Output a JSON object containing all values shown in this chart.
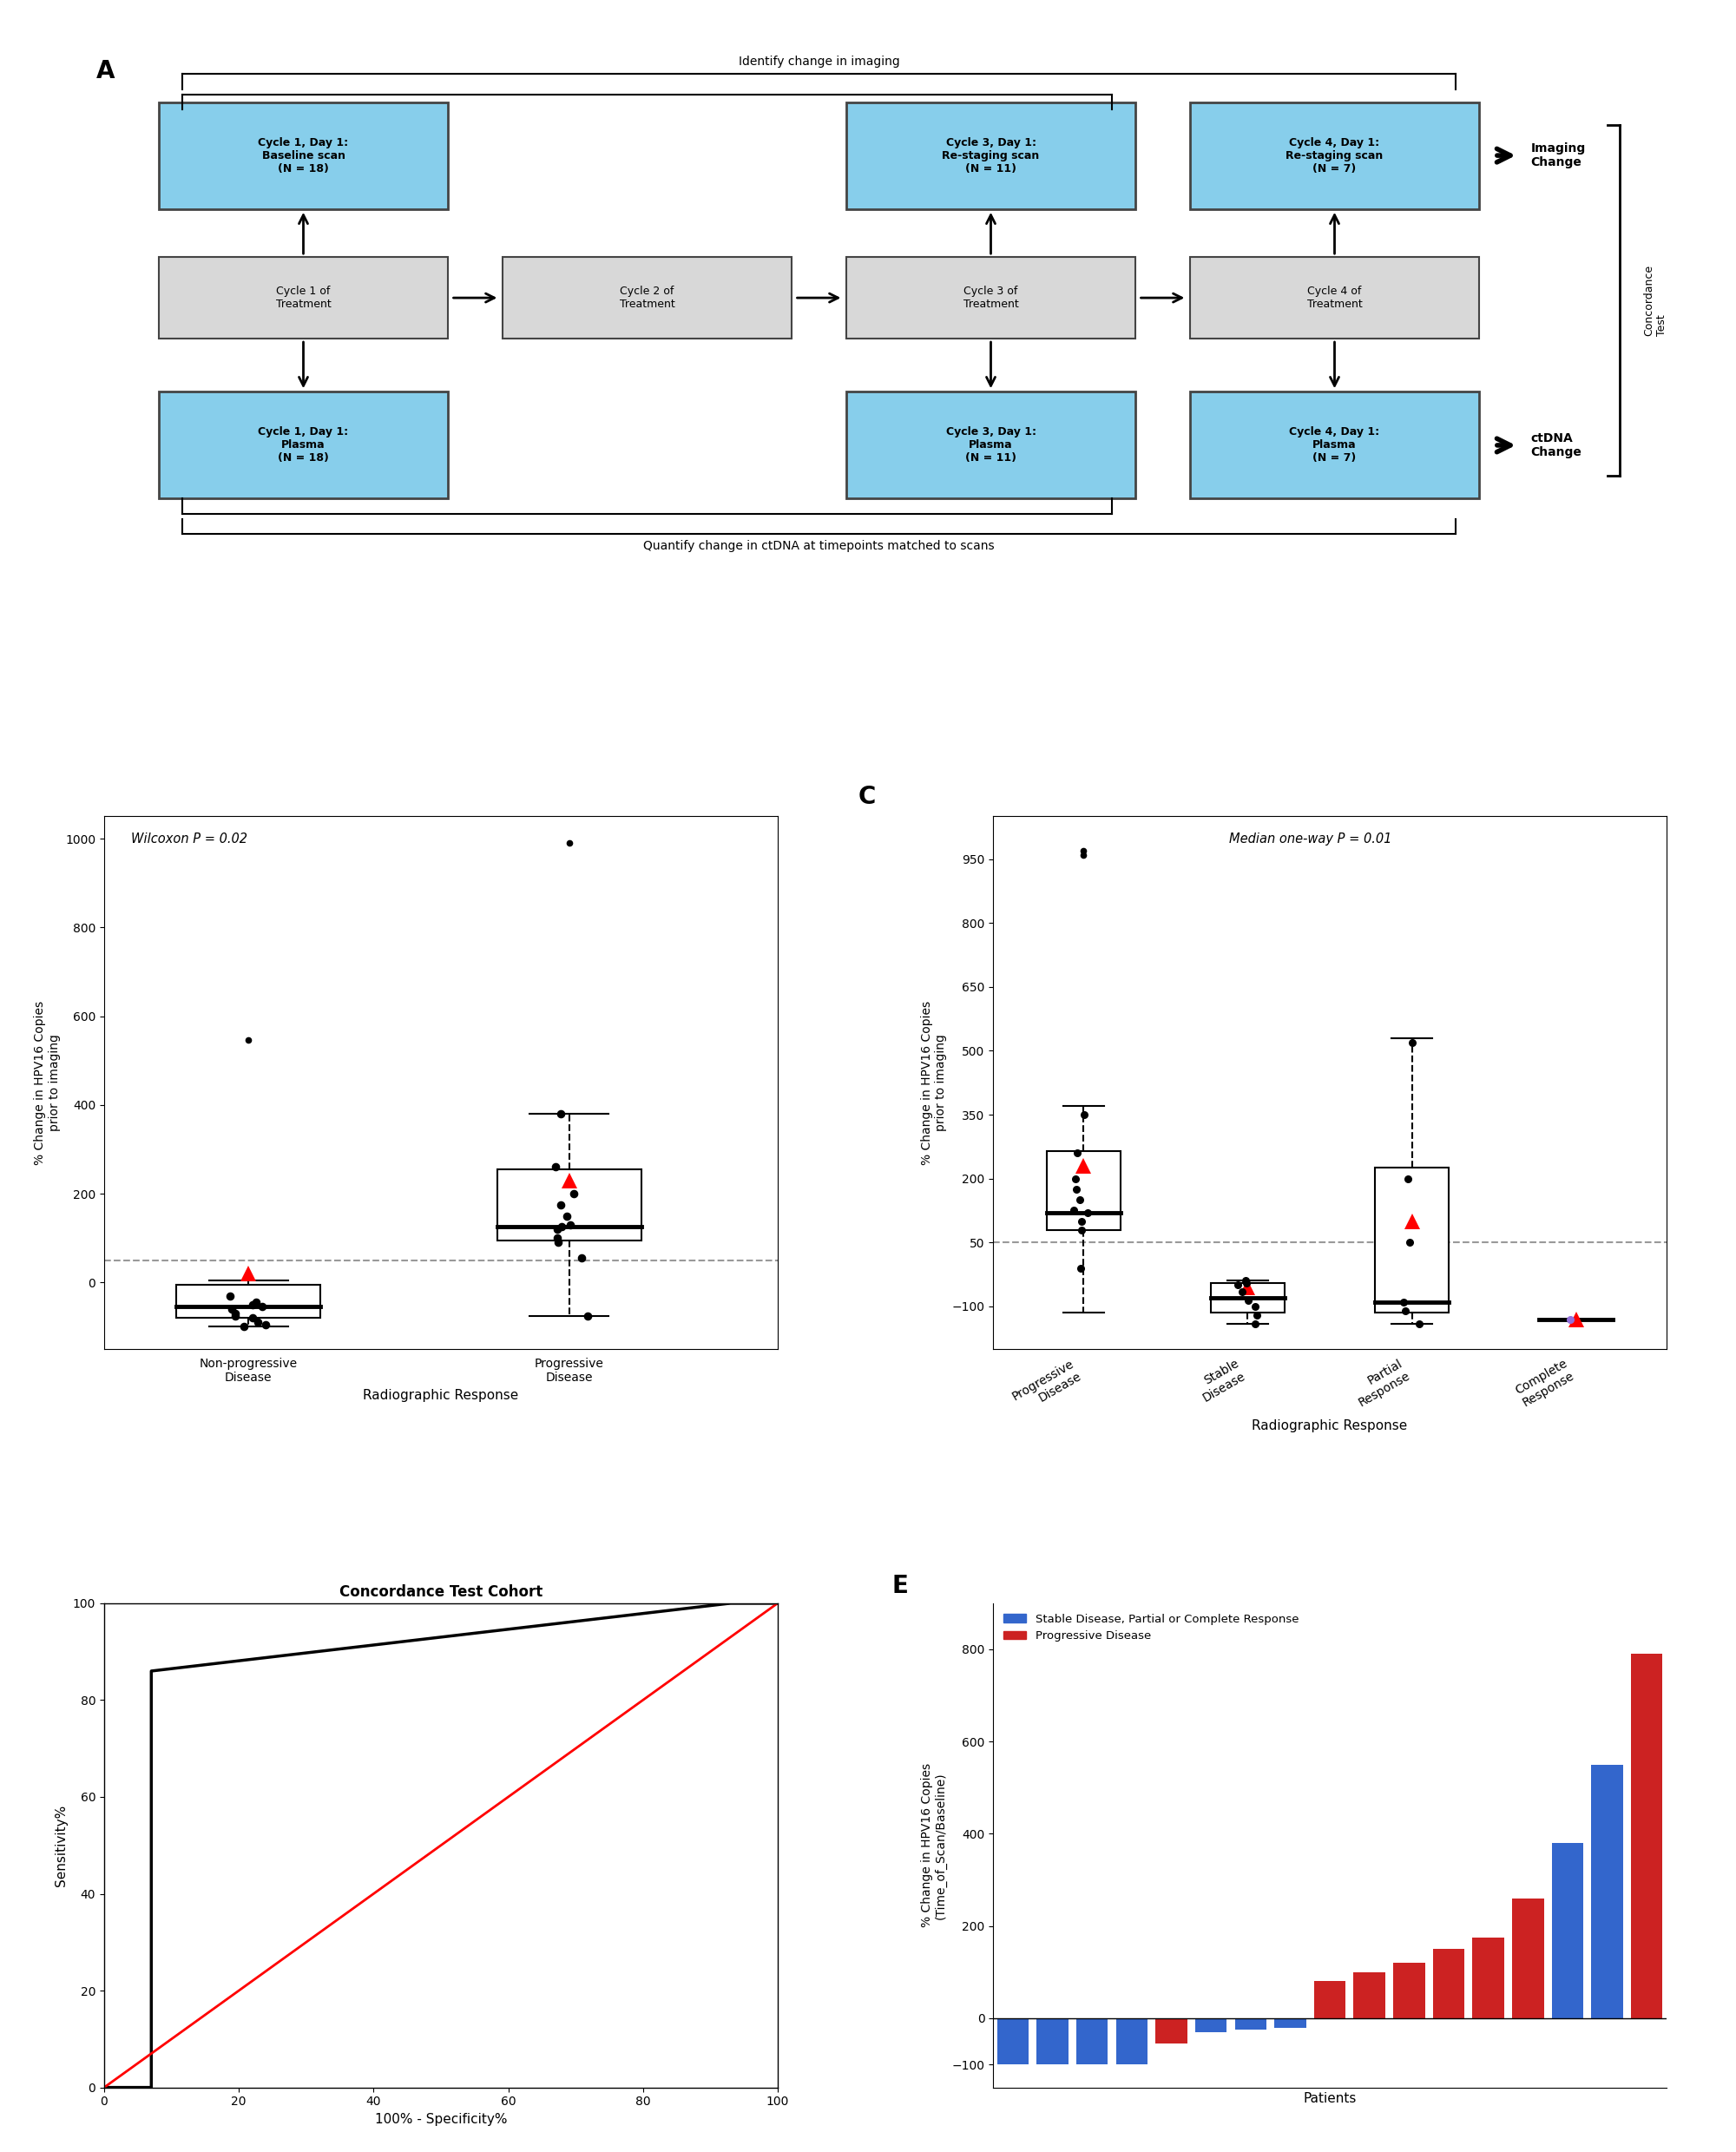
{
  "panel_A": {
    "cyan_color": "#87CEEB",
    "gray_color": "#D8D8D8",
    "edge_color": "#444444",
    "cyan_boxes": [
      {
        "text": "Cycle 1, Day 1:\nBaseline scan\n(N = 18)",
        "col": 0,
        "row": 0
      },
      {
        "text": "Cycle 3, Day 1:\nRe-staging scan\n(N = 11)",
        "col": 2,
        "row": 0
      },
      {
        "text": "Cycle 4, Day 1:\nRe-staging scan\n(N = 7)",
        "col": 3,
        "row": 0
      },
      {
        "text": "Cycle 1, Day 1:\nPlasma\n(N = 18)",
        "col": 0,
        "row": 2
      },
      {
        "text": "Cycle 3, Day 1:\nPlasma\n(N = 11)",
        "col": 2,
        "row": 2
      },
      {
        "text": "Cycle 4, Day 1:\nPlasma\n(N = 7)",
        "col": 3,
        "row": 2
      }
    ],
    "gray_boxes": [
      {
        "text": "Cycle 1 of\nTreatment",
        "col": 0
      },
      {
        "text": "Cycle 2 of\nTreatment",
        "col": 1
      },
      {
        "text": "Cycle 3 of\nTreatment",
        "col": 2
      },
      {
        "text": "Cycle 4 of\nTreatment",
        "col": 3
      }
    ],
    "top_bracket_text": "Identify change in imaging",
    "bottom_bracket_text": "Quantify change in ctDNA at timepoints matched to scans",
    "imaging_change_text": "Imaging\nChange",
    "ctdna_change_text": "ctDNA\nChange",
    "concordance_text": "Concordance\nTest"
  },
  "panel_B": {
    "npd_median": -55,
    "npd_q1": -80,
    "npd_q3": -5,
    "npd_whisker_low": -100,
    "npd_whisker_high": 5,
    "npd_mean": 20,
    "npd_outliers": [
      547
    ],
    "npd_scatter": [
      -100,
      -95,
      -90,
      -80,
      -75,
      -70,
      -60,
      -55,
      -50,
      -45,
      -30
    ],
    "pd_median": 125,
    "pd_q1": 95,
    "pd_q3": 255,
    "pd_whisker_low": -75,
    "pd_whisker_high": 380,
    "pd_mean": 230,
    "pd_outliers": [
      990
    ],
    "pd_scatter": [
      -75,
      55,
      90,
      100,
      120,
      125,
      130,
      150,
      175,
      200,
      260,
      380
    ],
    "dashed_line_y": 50,
    "annotation": "Wilcoxon P = 0.02",
    "ylabel": "% Change in HPV16 Copies\nprior to imaging",
    "xlabel": "Radiographic Response",
    "xtick_labels": [
      "Non-progressive\nDisease",
      "Progressive\nDisease"
    ],
    "ylim": [
      -150,
      1050
    ],
    "yticks": [
      0,
      200,
      400,
      600,
      800,
      1000
    ]
  },
  "panel_C": {
    "groups": [
      "Progressive\nDisease",
      "Stable\nDisease",
      "Partial\nResponse",
      "Complete\nResponse"
    ],
    "boxes": [
      {
        "q1": 80,
        "med": 120,
        "q3": 265,
        "wl": -115,
        "wh": 370,
        "outliers": [
          970,
          960
        ],
        "mean": 230,
        "scatter": [
          100,
          120,
          125,
          150,
          175,
          200,
          260,
          -10,
          80,
          350
        ]
      },
      {
        "q1": -115,
        "med": -80,
        "q3": -45,
        "wl": -140,
        "wh": -40,
        "outliers": [],
        "mean": -55,
        "scatter": [
          -140,
          -120,
          -100,
          -85,
          -65,
          -50,
          -45,
          -40
        ]
      },
      {
        "q1": -115,
        "med": -90,
        "q3": 225,
        "wl": -140,
        "wh": 530,
        "outliers": [],
        "mean": 100,
        "scatter": [
          -140,
          -110,
          -90,
          50,
          200,
          520
        ]
      },
      {
        "q1": -130,
        "med": -130,
        "q3": -130,
        "wl": -130,
        "wh": -130,
        "outliers": [],
        "mean": -130,
        "scatter": [
          -130
        ]
      }
    ],
    "dashed_line_y": 50,
    "annotation": "Median one-way P = 0.01",
    "ylabel": "% Change in HPV16 Copies\nprior to imaging",
    "xlabel": "Radiographic Response",
    "ylim": [
      -200,
      1050
    ],
    "yticks": [
      -100,
      50,
      200,
      350,
      500,
      650,
      800,
      950
    ],
    "scatter_color_3": "#9370DB"
  },
  "panel_D": {
    "fpr": [
      0,
      7,
      7,
      93,
      100
    ],
    "tpr": [
      0,
      0,
      86,
      100,
      100
    ],
    "title": "Concordance Test Cohort",
    "xlabel": "100% - Specificity%",
    "ylabel": "Sensitivity%",
    "xlim": [
      0,
      100
    ],
    "ylim": [
      0,
      100
    ],
    "xticks": [
      0,
      20,
      40,
      60,
      80,
      100
    ],
    "yticks": [
      0,
      20,
      40,
      60,
      80,
      100
    ]
  },
  "panel_E": {
    "values": [
      -100,
      -100,
      -100,
      -100,
      -55,
      -30,
      -25,
      -20,
      80,
      100,
      120,
      150,
      175,
      260,
      380,
      550,
      790
    ],
    "colors": [
      "#3366CC",
      "#3366CC",
      "#3366CC",
      "#3366CC",
      "#CC2222",
      "#3366CC",
      "#3366CC",
      "#3366CC",
      "#CC2222",
      "#CC2222",
      "#CC2222",
      "#CC2222",
      "#CC2222",
      "#CC2222",
      "#3366CC",
      "#3366CC",
      "#CC2222"
    ],
    "bar_blue": "#3366CC",
    "bar_red": "#CC2222",
    "xlabel": "Patients",
    "ylabel": "% Change in HPV16 Copies\n(Time_of_Scan/Baseline)",
    "legend_blue": "Stable Disease, Partial or Complete Response",
    "legend_red": "Progressive Disease",
    "ylim": [
      -150,
      900
    ],
    "yticks": [
      -100,
      0,
      200,
      400,
      600,
      800
    ]
  }
}
